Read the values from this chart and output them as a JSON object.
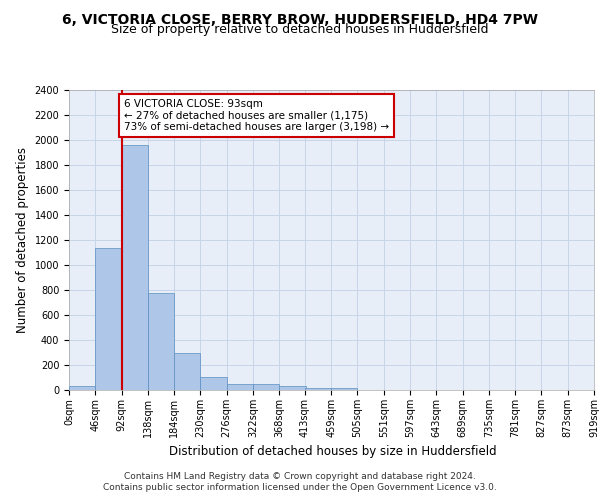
{
  "title_line1": "6, VICTORIA CLOSE, BERRY BROW, HUDDERSFIELD, HD4 7PW",
  "title_line2": "Size of property relative to detached houses in Huddersfield",
  "xlabel": "Distribution of detached houses by size in Huddersfield",
  "ylabel": "Number of detached properties",
  "bar_color": "#aec6e8",
  "bar_edge_color": "#5a8fc0",
  "grid_color": "#c8d4e8",
  "background_color": "#e8eef8",
  "annotation_box_color": "#cc0000",
  "annotation_line1": "6 VICTORIA CLOSE: 93sqm",
  "annotation_line2": "← 27% of detached houses are smaller (1,175)",
  "annotation_line3": "73% of semi-detached houses are larger (3,198) →",
  "property_line_x": 93,
  "property_line_color": "#cc0000",
  "bin_edges": [
    0,
    46,
    92,
    138,
    184,
    230,
    276,
    322,
    368,
    413,
    459,
    505,
    551,
    597,
    643,
    689,
    735,
    781,
    827,
    873,
    919
  ],
  "bar_heights": [
    35,
    1140,
    1960,
    775,
    300,
    105,
    50,
    45,
    35,
    20,
    20,
    0,
    0,
    0,
    0,
    0,
    0,
    0,
    0,
    0
  ],
  "tick_labels": [
    "0sqm",
    "46sqm",
    "92sqm",
    "138sqm",
    "184sqm",
    "230sqm",
    "276sqm",
    "322sqm",
    "368sqm",
    "413sqm",
    "459sqm",
    "505sqm",
    "551sqm",
    "597sqm",
    "643sqm",
    "689sqm",
    "735sqm",
    "781sqm",
    "827sqm",
    "873sqm",
    "919sqm"
  ],
  "ylim": [
    0,
    2400
  ],
  "yticks": [
    0,
    200,
    400,
    600,
    800,
    1000,
    1200,
    1400,
    1600,
    1800,
    2000,
    2200,
    2400
  ],
  "footer_line1": "Contains HM Land Registry data © Crown copyright and database right 2024.",
  "footer_line2": "Contains public sector information licensed under the Open Government Licence v3.0.",
  "title_fontsize": 10,
  "subtitle_fontsize": 9,
  "axis_label_fontsize": 8.5,
  "tick_fontsize": 7,
  "annotation_fontsize": 7.5,
  "footer_fontsize": 6.5
}
